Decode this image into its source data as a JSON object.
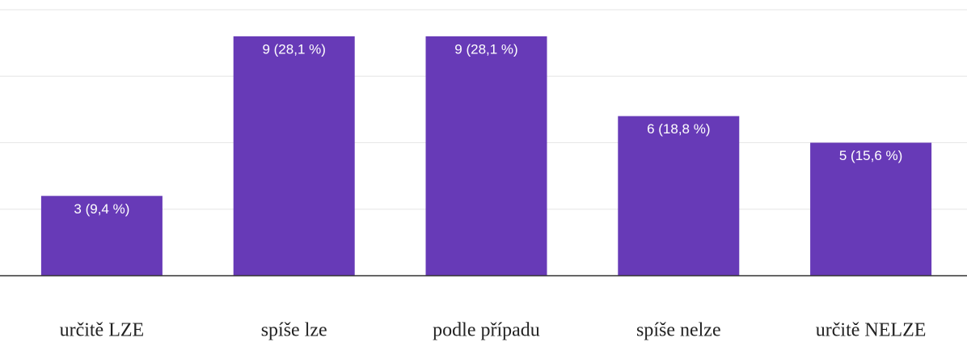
{
  "chart_data": {
    "type": "bar",
    "categories": [
      "určitě LZE",
      "spíše lze",
      "podle případu",
      "spíše nelze",
      "určitě NELZE"
    ],
    "values": [
      3,
      9,
      9,
      6,
      5
    ],
    "value_labels": [
      "3 (9,4 %)",
      "9 (28,1 %)",
      "9 (28,1 %)",
      "6 (18,8 %)",
      "5 (15,6 %)"
    ],
    "color": "#673ab7",
    "ylim": [
      0,
      10
    ],
    "yticks": [
      0,
      2.5,
      5,
      7.5,
      10
    ],
    "grid": true
  }
}
